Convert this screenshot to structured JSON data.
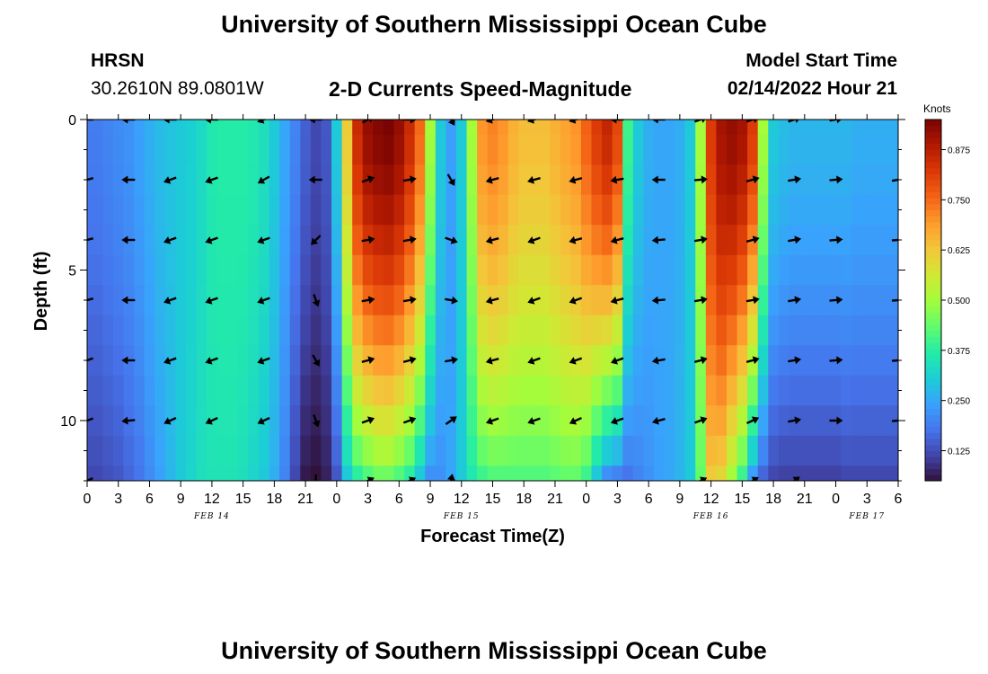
{
  "header": {
    "title": "University of Southern Mississippi Ocean Cube",
    "station": "HRSN",
    "coords": "30.2610N  89.0801W",
    "plot_title": "2-D Currents Speed-Magnitude",
    "model_label": "Model Start Time",
    "model_time": "02/14/2022 Hour 21"
  },
  "footer": {
    "title": "University of Southern Mississippi Ocean Cube"
  },
  "chart_data": {
    "type": "heatmap",
    "title": "2-D Currents Speed-Magnitude",
    "xlabel": "Forecast Time(Z)",
    "ylabel": "Depth (ft)",
    "colorbar_label": "Knots",
    "colorbar_ticks": [
      0.125,
      0.25,
      0.375,
      0.5,
      0.625,
      0.75,
      0.875
    ],
    "colorbar_tick_labels": [
      "0.125",
      "0.250",
      "0.375",
      "0.500",
      "0.625",
      "0.750",
      "0.875"
    ],
    "colorbar_range": [
      0.05,
      0.95
    ],
    "xlim": [
      0,
      78
    ],
    "ylim": [
      12,
      0
    ],
    "x_ticks": [
      0,
      3,
      6,
      9,
      12,
      15,
      18,
      21,
      24,
      27,
      30,
      33,
      36,
      39,
      42,
      45,
      48,
      51,
      54,
      57,
      60,
      63,
      66,
      69,
      72,
      75,
      78
    ],
    "x_tick_labels": [
      "0",
      "3",
      "6",
      "9",
      "12",
      "15",
      "18",
      "21",
      "0",
      "3",
      "6",
      "9",
      "12",
      "15",
      "18",
      "21",
      "0",
      "3",
      "6",
      "9",
      "12",
      "15",
      "18",
      "21",
      "0",
      "3",
      "6"
    ],
    "y_ticks": [
      0,
      5,
      10
    ],
    "y_tick_labels": [
      "0",
      "5",
      "10"
    ],
    "dates": [
      {
        "label": "FEB 14",
        "x": 12
      },
      {
        "label": "FEB 15",
        "x": 36
      },
      {
        "label": "FEB 16",
        "x": 60
      },
      {
        "label": "FEB 17",
        "x": 75
      }
    ],
    "time_hours": [
      0,
      1,
      2,
      3,
      4,
      5,
      6,
      7,
      8,
      9,
      10,
      11,
      12,
      13,
      14,
      15,
      16,
      17,
      18,
      19,
      20,
      21,
      22,
      23,
      24,
      25,
      26,
      27,
      28,
      29,
      30,
      31,
      32,
      33,
      34,
      35,
      36,
      37,
      38,
      39,
      40,
      41,
      42,
      43,
      44,
      45,
      46,
      47,
      48,
      49,
      50,
      51,
      52,
      53,
      54,
      55,
      56,
      57,
      58,
      59,
      60,
      61,
      62,
      63,
      64,
      65,
      66,
      67,
      68,
      69,
      70,
      71,
      72,
      73,
      74,
      75,
      76,
      77,
      78
    ],
    "depth_ft": [
      0,
      1,
      2,
      3,
      4,
      5,
      6,
      7,
      8,
      9,
      10,
      11,
      12
    ],
    "surface_speed_knots": [
      0.19,
      0.19,
      0.2,
      0.21,
      0.22,
      0.24,
      0.26,
      0.28,
      0.29,
      0.3,
      0.31,
      0.33,
      0.36,
      0.37,
      0.37,
      0.37,
      0.36,
      0.34,
      0.3,
      0.25,
      0.2,
      0.15,
      0.12,
      0.14,
      0.3,
      0.62,
      0.85,
      0.92,
      0.94,
      0.95,
      0.92,
      0.85,
      0.75,
      0.5,
      0.3,
      0.24,
      0.3,
      0.5,
      0.7,
      0.72,
      0.7,
      0.66,
      0.64,
      0.64,
      0.64,
      0.66,
      0.68,
      0.7,
      0.76,
      0.82,
      0.86,
      0.8,
      0.4,
      0.3,
      0.26,
      0.25,
      0.25,
      0.26,
      0.3,
      0.5,
      0.82,
      0.9,
      0.92,
      0.9,
      0.82,
      0.5,
      0.3,
      0.28,
      0.27,
      0.27,
      0.27,
      0.27,
      0.27,
      0.27,
      0.26,
      0.26,
      0.26,
      0.26,
      0.26
    ],
    "bottom_speed_knots": [
      0.12,
      0.12,
      0.13,
      0.14,
      0.16,
      0.18,
      0.21,
      0.24,
      0.27,
      0.3,
      0.32,
      0.34,
      0.35,
      0.35,
      0.35,
      0.34,
      0.32,
      0.3,
      0.26,
      0.2,
      0.12,
      0.06,
      0.05,
      0.07,
      0.14,
      0.3,
      0.38,
      0.42,
      0.45,
      0.45,
      0.42,
      0.38,
      0.3,
      0.22,
      0.22,
      0.25,
      0.3,
      0.36,
      0.4,
      0.42,
      0.42,
      0.42,
      0.42,
      0.42,
      0.42,
      0.43,
      0.44,
      0.44,
      0.4,
      0.3,
      0.22,
      0.2,
      0.18,
      0.2,
      0.22,
      0.24,
      0.25,
      0.27,
      0.3,
      0.44,
      0.62,
      0.6,
      0.5,
      0.4,
      0.24,
      0.16,
      0.12,
      0.11,
      0.11,
      0.11,
      0.11,
      0.11,
      0.11,
      0.12,
      0.12,
      0.12,
      0.12,
      0.12,
      0.12
    ],
    "vectors": [
      {
        "t": 0,
        "depths": [
          0,
          2,
          4,
          6,
          8,
          10,
          12
        ],
        "deg": [
          180,
          195,
          195,
          195,
          200,
          200,
          205
        ]
      },
      {
        "t": 4,
        "depths": [
          0,
          2,
          4,
          6,
          8,
          10
        ],
        "deg": [
          180,
          180,
          180,
          180,
          180,
          185
        ]
      },
      {
        "t": 8,
        "depths": [
          0,
          2,
          4,
          6,
          8,
          10
        ],
        "deg": [
          180,
          200,
          200,
          200,
          200,
          205
        ]
      },
      {
        "t": 12,
        "depths": [
          0,
          2,
          4,
          6,
          8,
          10
        ],
        "deg": [
          180,
          200,
          200,
          200,
          200,
          205
        ]
      },
      {
        "t": 17,
        "depths": [
          0,
          2,
          4,
          6,
          8,
          10
        ],
        "deg": [
          200,
          210,
          200,
          200,
          200,
          205
        ]
      },
      {
        "t": 22,
        "depths": [
          0,
          2,
          4,
          6,
          8,
          10,
          12
        ],
        "deg": [
          180,
          180,
          225,
          290,
          300,
          290,
          270
        ]
      },
      {
        "t": 27,
        "depths": [
          0,
          2,
          4,
          6,
          8,
          10,
          12
        ],
        "deg": [
          30,
          20,
          10,
          10,
          15,
          20,
          25
        ]
      },
      {
        "t": 31,
        "depths": [
          0,
          2,
          4,
          6,
          8,
          10,
          12
        ],
        "deg": [
          0,
          10,
          10,
          10,
          15,
          20,
          25
        ]
      },
      {
        "t": 35,
        "depths": [
          0,
          2,
          4,
          6,
          8,
          10,
          12
        ],
        "deg": [
          300,
          300,
          340,
          350,
          10,
          35,
          80
        ]
      },
      {
        "t": 39,
        "depths": [
          0,
          2,
          4,
          6,
          8,
          10
        ],
        "deg": [
          195,
          195,
          195,
          195,
          195,
          200
        ]
      },
      {
        "t": 43,
        "depths": [
          0,
          2,
          4,
          6,
          8,
          10
        ],
        "deg": [
          195,
          195,
          200,
          200,
          200,
          200
        ]
      },
      {
        "t": 47,
        "depths": [
          0,
          2,
          4,
          6,
          8,
          10
        ],
        "deg": [
          195,
          195,
          195,
          200,
          200,
          205
        ]
      },
      {
        "t": 51,
        "depths": [
          0,
          2,
          4,
          6,
          8,
          10
        ],
        "deg": [
          180,
          190,
          195,
          195,
          200,
          200
        ]
      },
      {
        "t": 55,
        "depths": [
          0,
          2,
          4,
          6,
          8,
          10
        ],
        "deg": [
          180,
          180,
          185,
          185,
          190,
          195
        ]
      },
      {
        "t": 59,
        "depths": [
          0,
          2,
          4,
          6,
          8,
          10,
          12
        ],
        "deg": [
          20,
          5,
          10,
          10,
          15,
          20,
          25
        ]
      },
      {
        "t": 64,
        "depths": [
          0,
          2,
          4,
          6,
          8,
          10,
          12
        ],
        "deg": [
          20,
          15,
          15,
          10,
          15,
          25,
          30
        ]
      },
      {
        "t": 68,
        "depths": [
          0,
          2,
          4,
          6,
          8,
          10,
          12
        ],
        "deg": [
          20,
          10,
          10,
          10,
          10,
          10,
          35
        ]
      },
      {
        "t": 72,
        "depths": [
          0,
          2,
          4,
          6,
          8,
          10
        ],
        "deg": [
          10,
          5,
          5,
          5,
          5,
          0
        ]
      },
      {
        "t": 78,
        "depths": [
          2,
          4,
          6,
          8,
          10
        ],
        "deg": [
          10,
          5,
          5,
          5,
          5
        ]
      }
    ]
  }
}
